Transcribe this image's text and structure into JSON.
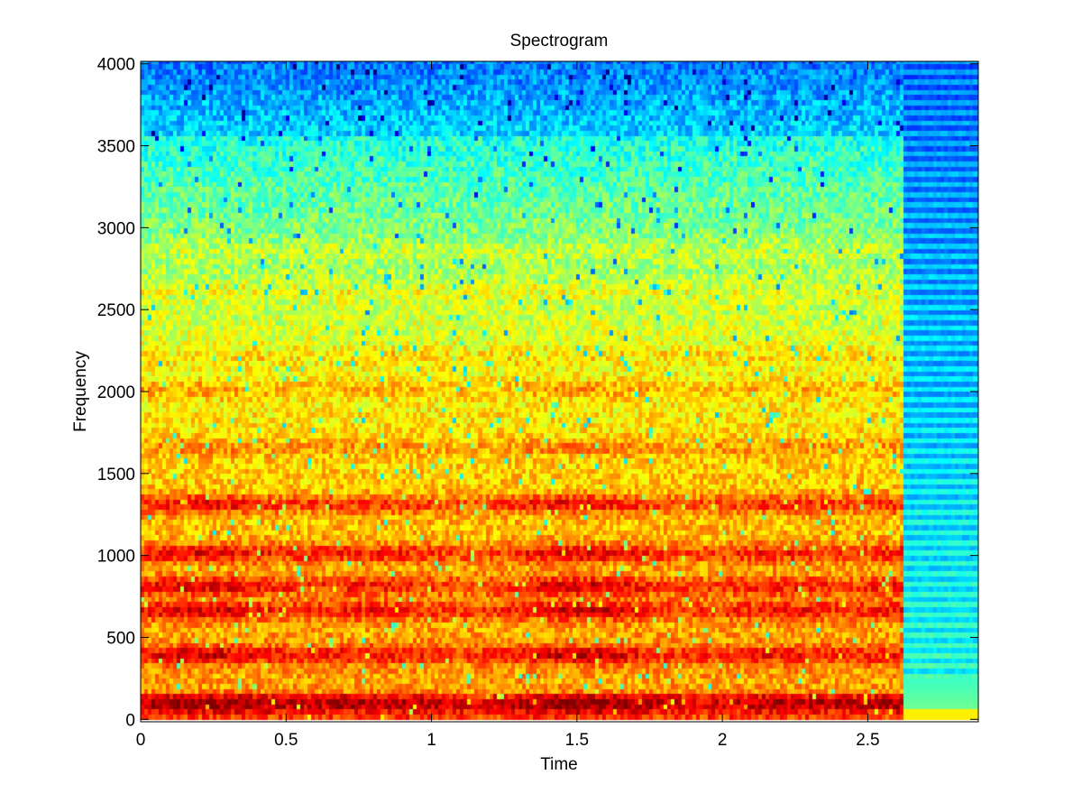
{
  "chart_data": {
    "type": "heatmap",
    "title": "Spectrogram",
    "xlabel": "Time",
    "ylabel": "Frequency",
    "xlim": [
      0,
      2.88
    ],
    "ylim": [
      -15,
      4015
    ],
    "xticks": [
      0,
      0.5,
      1,
      1.5,
      2,
      2.5
    ],
    "xtick_labels": [
      "0",
      "0.5",
      "1",
      "1.5",
      "2",
      "2.5"
    ],
    "yticks": [
      0,
      500,
      1000,
      1500,
      2000,
      2500,
      3000,
      3500,
      4000
    ],
    "ytick_labels": [
      "0",
      "500",
      "1000",
      "1500",
      "2000",
      "2500",
      "3000",
      "3500",
      "4000"
    ],
    "colormap": "jet",
    "grid": false,
    "time_step": 0.0125,
    "freq_step": 31.25,
    "signal_end_time": 2.62,
    "features": {
      "loud_bands_hz": [
        80,
        380,
        650,
        800,
        1000,
        1300,
        1650,
        2000
      ],
      "harmonic_bands_hz": [
        2200,
        2600,
        2850
      ],
      "silence_after_time": 2.62,
      "silence_low_band_hz": 60
    }
  }
}
